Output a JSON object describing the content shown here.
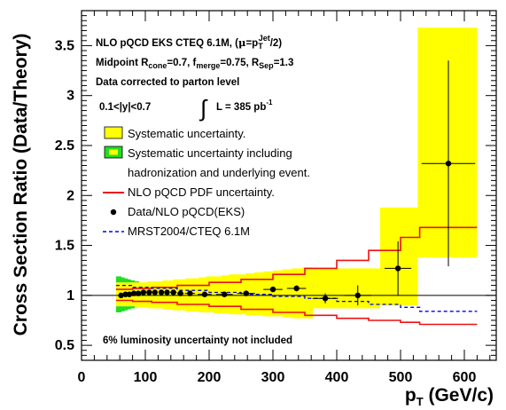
{
  "chart_data": {
    "type": "scatter",
    "xlabel": "p",
    "xlabel_sub": "T",
    "xlabel_unit": " (GeV/c)",
    "ylabel": "Cross Section Ratio (Data/Theory)",
    "xlim": [
      0,
      650
    ],
    "ylim": [
      0.35,
      3.85
    ],
    "xticks": [
      "0",
      "100",
      "200",
      "300",
      "400",
      "500",
      "600"
    ],
    "xtick_values": [
      0,
      100,
      200,
      300,
      400,
      500,
      600
    ],
    "yticks": [
      "0.5",
      "1",
      "1.5",
      "2",
      "2.5",
      "3",
      "3.5"
    ],
    "ytick_values": [
      0.5,
      1,
      1.5,
      2,
      2.5,
      3,
      3.5
    ],
    "reference_line_y": 1,
    "annotations": {
      "line1_a": "NLO pQCD EKS CTEQ 6.1M, (",
      "line1_mu": "μ",
      "line1_b": "=p",
      "line1_sub": "T",
      "line1_sup": "Jet",
      "line1_c": "/2)",
      "line2_a": "Midpoint R",
      "line2_sub1": "cone",
      "line2_b": "=0.7, f",
      "line2_sub2": "merge",
      "line2_c": "=0.75, R",
      "line2_sub3": "Sep",
      "line2_d": "=1.3",
      "line3": "Data corrected to parton level",
      "rapidity": "0.1<|y|<0.7",
      "integral_sign": "∫",
      "lumi_main": "L = 385 pb",
      "lumi_sup": "-1",
      "footnote": "6% luminosity  uncertainty not included"
    },
    "legend": {
      "placement": "upper-left",
      "entries": [
        {
          "key": "syst",
          "label": "Systematic uncertainty.",
          "label2": ""
        },
        {
          "key": "hadr",
          "label": "Systematic uncertainty including",
          "label2": "hadronization and underlying event."
        },
        {
          "key": "pdf",
          "label": "NLO pQCD PDF uncertainty.",
          "label2": ""
        },
        {
          "key": "data",
          "label": "Data/NLO pQCD(EKS)",
          "label2": ""
        },
        {
          "key": "mrst",
          "label": "MRST2004/CTEQ 6.1M",
          "label2": ""
        }
      ]
    },
    "colors": {
      "systematic": "#ffff00",
      "systematic_edge": "#c8c800",
      "hadronization": "#22dd22",
      "pdf": "#ee1111",
      "data": "#000000",
      "mrst": "#0000ee"
    },
    "bin_edges": [
      54,
      62,
      67,
      72,
      77,
      83,
      90,
      97,
      104,
      111,
      119,
      127,
      135,
      144,
      153,
      163,
      173,
      184,
      195,
      207,
      219,
      231,
      244,
      257,
      271,
      285,
      300,
      315,
      330,
      346,
      362,
      378,
      395,
      412,
      430,
      449,
      468,
      487,
      507,
      527,
      548,
      570,
      620
    ],
    "syst_band": [
      [
        0.89,
        1.13
      ],
      [
        0.89,
        1.13
      ],
      [
        0.89,
        1.13
      ],
      [
        0.89,
        1.13
      ],
      [
        0.89,
        1.13
      ],
      [
        0.88,
        1.13
      ],
      [
        0.88,
        1.13
      ],
      [
        0.88,
        1.13
      ],
      [
        0.87,
        1.14
      ],
      [
        0.87,
        1.14
      ],
      [
        0.87,
        1.14
      ],
      [
        0.86,
        1.15
      ],
      [
        0.86,
        1.15
      ],
      [
        0.85,
        1.16
      ],
      [
        0.85,
        1.16
      ],
      [
        0.84,
        1.17
      ],
      [
        0.84,
        1.17
      ],
      [
        0.83,
        1.18
      ],
      [
        0.83,
        1.19
      ],
      [
        0.82,
        1.19
      ],
      [
        0.82,
        1.2
      ],
      [
        0.81,
        1.21
      ],
      [
        0.81,
        1.21
      ],
      [
        0.8,
        1.22
      ],
      [
        0.8,
        1.23
      ],
      [
        0.79,
        1.24
      ],
      [
        0.79,
        1.25
      ],
      [
        0.78,
        1.26
      ],
      [
        0.77,
        1.27
      ],
      [
        0.77,
        1.28
      ],
      [
        0.76,
        1.3
      ],
      [
        0.75,
        1.31
      ],
      [
        0.74,
        1.33
      ],
      [
        0.73,
        1.35
      ],
      [
        0.72,
        1.38
      ],
      [
        0.71,
        1.42
      ],
      [
        0.7,
        1.88
      ],
      [
        0.7,
        1.88
      ],
      [
        0.69,
        1.88
      ],
      [
        0.68,
        3.68
      ],
      [
        0.67,
        3.68
      ],
      [
        0.66,
        3.68
      ]
    ],
    "syst_band_high_pt": [
      {
        "x0": 362,
        "x1": 468,
        "low": 0.87,
        "high": 1.27
      },
      {
        "x0": 468,
        "x1": 527,
        "low": 0.9,
        "high": 1.88
      },
      {
        "x0": 527,
        "x1": 620,
        "low": 1.38,
        "high": 3.68
      }
    ],
    "hadr_band": [
      [
        0.83,
        1.19
      ],
      [
        0.84,
        1.18
      ],
      [
        0.85,
        1.17
      ],
      [
        0.86,
        1.16
      ],
      [
        0.87,
        1.15
      ],
      [
        0.88,
        1.14
      ],
      [
        0.89,
        1.13
      ],
      [
        0.9,
        1.12
      ],
      [
        0.91,
        1.11
      ],
      [
        0.92,
        1.1
      ]
    ],
    "pdf_band": {
      "edges": [
        54,
        80,
        110,
        150,
        200,
        250,
        300,
        350,
        400,
        450,
        500,
        530,
        620
      ],
      "upper": [
        1.06,
        1.07,
        1.08,
        1.1,
        1.13,
        1.16,
        1.21,
        1.27,
        1.35,
        1.45,
        1.58,
        1.68,
        1.68
      ],
      "lower": [
        0.95,
        0.94,
        0.93,
        0.91,
        0.89,
        0.86,
        0.83,
        0.8,
        0.77,
        0.75,
        0.73,
        0.71,
        0.71
      ]
    },
    "mrst": {
      "edges": [
        54,
        80,
        110,
        150,
        200,
        250,
        300,
        350,
        400,
        450,
        500,
        530,
        620
      ],
      "values": [
        1.1,
        1.08,
        1.07,
        1.05,
        1.03,
        1.01,
        0.99,
        0.97,
        0.94,
        0.91,
        0.88,
        0.84,
        0.84
      ]
    },
    "data_points": [
      {
        "x": 62,
        "y": 1.0,
        "xerr": 4,
        "yerr": 0.01
      },
      {
        "x": 69,
        "y": 1.01,
        "xerr": 3,
        "yerr": 0.01
      },
      {
        "x": 75,
        "y": 1.01,
        "xerr": 3,
        "yerr": 0.01
      },
      {
        "x": 82,
        "y": 1.02,
        "xerr": 3,
        "yerr": 0.01
      },
      {
        "x": 89,
        "y": 1.02,
        "xerr": 3,
        "yerr": 0.01
      },
      {
        "x": 97,
        "y": 1.03,
        "xerr": 4,
        "yerr": 0.01
      },
      {
        "x": 106,
        "y": 1.03,
        "xerr": 4,
        "yerr": 0.01
      },
      {
        "x": 115,
        "y": 1.03,
        "xerr": 4,
        "yerr": 0.01
      },
      {
        "x": 125,
        "y": 1.03,
        "xerr": 4,
        "yerr": 0.01
      },
      {
        "x": 134,
        "y": 1.03,
        "xerr": 4,
        "yerr": 0.01
      },
      {
        "x": 144,
        "y": 1.03,
        "xerr": 5,
        "yerr": 0.01
      },
      {
        "x": 155,
        "y": 1.02,
        "xerr": 5,
        "yerr": 0.01
      },
      {
        "x": 170,
        "y": 1.02,
        "xerr": 8,
        "yerr": 0.01
      },
      {
        "x": 193,
        "y": 1.01,
        "xerr": 11,
        "yerr": 0.01
      },
      {
        "x": 224,
        "y": 1.01,
        "xerr": 13,
        "yerr": 0.01
      },
      {
        "x": 258,
        "y": 1.02,
        "xerr": 14,
        "yerr": 0.02
      },
      {
        "x": 300,
        "y": 1.06,
        "xerr": 15,
        "yerr": 0.02
      },
      {
        "x": 337,
        "y": 1.07,
        "xerr": 15,
        "yerr": 0.03
      },
      {
        "x": 382,
        "y": 0.97,
        "xerr": 20,
        "yerr": 0.05
      },
      {
        "x": 433,
        "y": 1.0,
        "xerr": 21,
        "yerr": 0.1
      },
      {
        "x": 496,
        "y": 1.27,
        "xerr": 21,
        "yerr": 0.27
      },
      {
        "x": 575,
        "y": 2.32,
        "xerr": 42,
        "yerr": 1.03
      }
    ]
  }
}
